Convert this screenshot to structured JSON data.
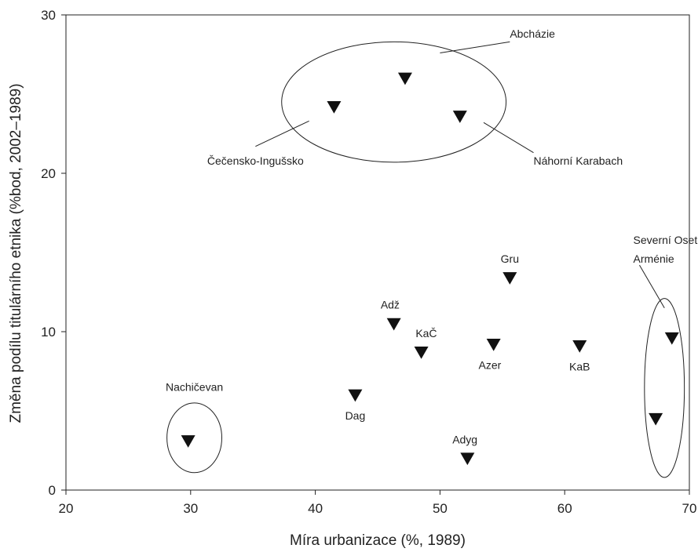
{
  "chart_data": {
    "type": "scatter",
    "xlabel": "Míra urbanizace (%, 1989)",
    "ylabel": "Změna podílu titulárního etnika (%bod, 2002–1989)",
    "xlim": [
      20,
      70
    ],
    "ylim": [
      0,
      30
    ],
    "xticks": [
      "20",
      "30",
      "40",
      "50",
      "60",
      "70"
    ],
    "yticks": [
      "0",
      "10",
      "20",
      "30"
    ],
    "grid": false,
    "marker": "inverted-triangle",
    "marker_color": "#111111",
    "points": [
      {
        "x": 29.8,
        "y": 3.1
      },
      {
        "x": 43.2,
        "y": 6.0
      },
      {
        "x": 46.3,
        "y": 10.5
      },
      {
        "x": 48.5,
        "y": 8.7
      },
      {
        "x": 52.2,
        "y": 2.0
      },
      {
        "x": 54.3,
        "y": 9.2
      },
      {
        "x": 55.6,
        "y": 13.4
      },
      {
        "x": 61.2,
        "y": 9.1
      },
      {
        "x": 67.3,
        "y": 4.5
      },
      {
        "x": 68.6,
        "y": 9.6
      },
      {
        "x": 41.5,
        "y": 24.2
      },
      {
        "x": 47.2,
        "y": 26.0
      },
      {
        "x": 51.6,
        "y": 23.6
      }
    ],
    "annotations": [
      {
        "text": "Nachičevan",
        "x": 30.3,
        "y": 6.5,
        "anchor": "middle"
      },
      {
        "text": "Dag",
        "x": 43.2,
        "y": 4.7,
        "anchor": "middle"
      },
      {
        "text": "Adž",
        "x": 46.0,
        "y": 11.7,
        "anchor": "middle"
      },
      {
        "text": "KaČ",
        "x": 48.9,
        "y": 9.9,
        "anchor": "middle"
      },
      {
        "text": "Adyg",
        "x": 52.0,
        "y": 3.2,
        "anchor": "middle"
      },
      {
        "text": "Azer",
        "x": 54.0,
        "y": 7.9,
        "anchor": "middle"
      },
      {
        "text": "Gru",
        "x": 55.6,
        "y": 14.6,
        "anchor": "middle"
      },
      {
        "text": "KaB",
        "x": 61.2,
        "y": 7.8,
        "anchor": "middle"
      },
      {
        "text": "Abcházie",
        "x": 55.6,
        "y": 28.8,
        "anchor": "start"
      },
      {
        "text": "Čečensko-Ingušsko",
        "x": 35.2,
        "y": 20.8,
        "anchor": "middle"
      },
      {
        "text": "Náhorní Karabach",
        "x": 57.5,
        "y": 20.8,
        "anchor": "start"
      },
      {
        "text": "Severní Osetie,",
        "x": 65.5,
        "y": 15.8,
        "anchor": "start"
      },
      {
        "text": "Arménie",
        "x": 65.5,
        "y": 14.6,
        "anchor": "start"
      }
    ],
    "ellipses": [
      {
        "cx": 30.3,
        "cy": 3.3,
        "rx": 2.2,
        "ry": 2.2
      },
      {
        "cx": 46.3,
        "cy": 24.5,
        "rx": 9.0,
        "ry": 3.8
      },
      {
        "cx": 68.0,
        "cy": 6.45,
        "rx": 1.6,
        "ry": 5.65
      }
    ],
    "leaders": [
      {
        "x1": 55.6,
        "y1": 28.3,
        "x2": 50.0,
        "y2": 27.6
      },
      {
        "x1": 35.2,
        "y1": 21.7,
        "x2": 39.5,
        "y2": 23.3
      },
      {
        "x1": 57.5,
        "y1": 21.3,
        "x2": 53.5,
        "y2": 23.2
      },
      {
        "x1": 66.0,
        "y1": 14.2,
        "x2": 68.0,
        "y2": 11.5
      }
    ]
  }
}
